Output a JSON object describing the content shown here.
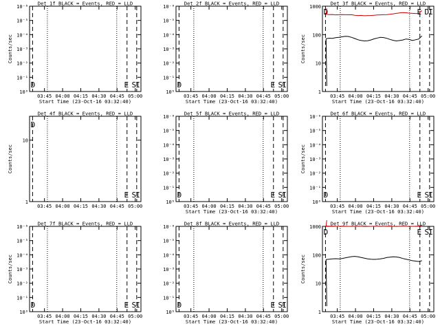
{
  "chart_data": [
    {
      "type": "line",
      "title": "Det 1f BLACK = Events, RED = LLD",
      "xlabel": "Start Time (23-Oct-16 03:32:40)",
      "ylabel": "Counts/sec",
      "y_scale": "log",
      "y_ticks": [
        "10⁰",
        "10⁻¹",
        "10⁻²",
        "10⁻³",
        "10⁻⁴",
        "10⁻⁵",
        "10⁻⁶"
      ],
      "x_ticks": [
        "03:45",
        "04:00",
        "04:15",
        "04:30",
        "04:45",
        "05:00"
      ],
      "markers": [
        "D",
        "E",
        "S",
        "I"
      ],
      "series": []
    },
    {
      "type": "line",
      "title": "Det 2f BLACK = Events, RED = LLD",
      "xlabel": "Start Time (23-Oct-16 03:32:40)",
      "ylabel": "",
      "y_scale": "log",
      "y_ticks": [
        "10⁰",
        "10⁻¹",
        "10⁻²",
        "10⁻³",
        "10⁻⁴",
        "10⁻⁵",
        "10⁻⁶"
      ],
      "x_ticks": [
        "03:45",
        "04:00",
        "04:15",
        "04:30",
        "04:45",
        "05:00"
      ],
      "markers": [
        "D",
        "E",
        "S",
        "I"
      ],
      "series": []
    },
    {
      "type": "line",
      "title": "Det 3f BLACK = Events, RED = LLD",
      "xlabel": "Start Time (23-Oct-16 03:32:40)",
      "ylabel": "Counts/sec",
      "y_scale": "log",
      "y_ticks": [
        "1",
        "10",
        "100",
        "1000"
      ],
      "x_ticks": [
        "03:45",
        "04:00",
        "04:15",
        "04:30",
        "04:45",
        "05:00"
      ],
      "markers": [
        "D",
        "E",
        "D",
        "I"
      ],
      "series": [
        {
          "color": "#000000",
          "x_min": [
            0,
            3,
            6,
            9,
            12,
            15,
            18,
            21,
            24,
            27,
            30,
            33,
            36,
            39,
            42,
            45,
            48,
            51,
            54,
            57,
            60,
            63,
            66,
            69,
            72,
            75,
            78,
            81,
            84,
            87,
            90
          ],
          "y": [
            72,
            75,
            74,
            78,
            80,
            84,
            87,
            86,
            80,
            73,
            66,
            62,
            60,
            61,
            65,
            71,
            76,
            80,
            79,
            74,
            68,
            63,
            60,
            62,
            65,
            70,
            68,
            62,
            66,
            70,
            90
          ]
        },
        {
          "color": "#cc0000",
          "x_min": [
            0,
            3,
            6,
            9,
            12,
            15,
            18,
            21,
            24,
            27,
            30,
            33,
            36,
            39,
            42,
            45,
            48,
            51,
            54,
            57,
            60,
            63,
            66,
            69,
            72,
            75,
            78,
            81,
            84,
            87,
            90
          ],
          "y": [
            520,
            505,
            510,
            495,
            500,
            505,
            500,
            498,
            500,
            480,
            470,
            475,
            460,
            470,
            472,
            480,
            490,
            495,
            500,
            505,
            520,
            540,
            560,
            580,
            600,
            590,
            570,
            560,
            555,
            555,
            700
          ]
        }
      ]
    },
    {
      "type": "line",
      "title": "Det 4f BLACK = Events, RED = LLD",
      "xlabel": "",
      "ylabel": "Counts/sec",
      "y_scale": "log",
      "y_ticks": [
        "1",
        "10"
      ],
      "x_ticks": [
        "03:45",
        "04:00",
        "04:15",
        "04:30",
        "04:45",
        "05:00"
      ],
      "markers": [
        "D",
        "E",
        "S",
        "I"
      ],
      "series": []
    },
    {
      "type": "line",
      "title": "Det 5f BLACK = Events, RED = LLD",
      "xlabel": "Start Time (23-Oct-16 03:32:40)",
      "ylabel": "",
      "y_scale": "log",
      "y_ticks": [
        "10⁰",
        "10⁻¹",
        "10⁻²",
        "10⁻³",
        "10⁻⁴",
        "10⁻⁵",
        "10⁻⁶"
      ],
      "x_ticks": [
        "03:45",
        "04:00",
        "04:15",
        "04:30",
        "04:45",
        "05:00"
      ],
      "markers": [
        "D",
        "E",
        "S",
        "I"
      ],
      "series": []
    },
    {
      "type": "line",
      "title": "Det 6f BLACK = Events, RED = LLD",
      "xlabel": "Start Time (23-Oct-16 03:32:40)",
      "ylabel": "Counts/sec",
      "y_scale": "log",
      "y_ticks": [
        "10⁰",
        "10⁻¹",
        "10⁻²",
        "10⁻³",
        "10⁻⁴",
        "10⁻⁵",
        "10⁻⁶"
      ],
      "x_ticks": [
        "03:45",
        "04:00",
        "04:15",
        "04:30",
        "04:45",
        "05:00"
      ],
      "markers": [
        "D",
        "E",
        "S",
        "I"
      ],
      "series": []
    },
    {
      "type": "line",
      "title": "Det 7f BLACK = Events, RED = LLD",
      "xlabel": "Start Time (23-Oct-16 03:32:40)",
      "ylabel": "Counts/sec",
      "y_scale": "log",
      "y_ticks": [
        "10⁰",
        "10⁻¹",
        "10⁻²",
        "10⁻³",
        "10⁻⁴",
        "10⁻⁵",
        "10⁻⁶"
      ],
      "x_ticks": [
        "03:45",
        "04:00",
        "04:15",
        "04:30",
        "04:45",
        "05:00"
      ],
      "markers": [
        "D",
        "E",
        "S",
        "I"
      ],
      "series": []
    },
    {
      "type": "line",
      "title": "Det 8f BLACK = Events, RED = LLD",
      "xlabel": "Start Time (23-Oct-16 03:32:40)",
      "ylabel": "",
      "y_scale": "log",
      "y_ticks": [
        "10⁰",
        "10⁻¹",
        "10⁻²",
        "10⁻³",
        "10⁻⁴",
        "10⁻⁵",
        "10⁻⁶"
      ],
      "x_ticks": [
        "03:45",
        "04:00",
        "04:15",
        "04:30",
        "04:45",
        "05:00"
      ],
      "markers": [
        "D",
        "E",
        "S",
        "I"
      ],
      "series": []
    },
    {
      "type": "line",
      "title": "Det 9f BLACK = Events, RED = LLD",
      "xlabel": "Start Time (23-Oct-16 03:32:40)",
      "ylabel": "Counts/sec",
      "y_scale": "log",
      "y_ticks": [
        "1",
        "10",
        "100",
        "1000"
      ],
      "x_ticks": [
        "03:45",
        "04:00",
        "04:15",
        "04:30",
        "04:45",
        "05:00"
      ],
      "markers": [
        "D",
        "E",
        "S",
        "I"
      ],
      "series": [
        {
          "color": "#000000",
          "x_min": [
            0,
            3,
            6,
            9,
            12,
            15,
            18,
            21,
            24,
            27,
            30,
            33,
            36,
            39,
            42,
            45,
            48,
            51,
            54,
            57,
            60,
            63,
            66,
            69,
            72,
            75,
            78,
            81,
            84,
            87,
            90
          ],
          "y": [
            68,
            70,
            72,
            73,
            72,
            74,
            78,
            82,
            86,
            88,
            85,
            80,
            76,
            72,
            70,
            69,
            70,
            72,
            75,
            80,
            83,
            85,
            84,
            80,
            74,
            70,
            66,
            62,
            60,
            58,
            62
          ]
        },
        {
          "color": "#cc0000",
          "x_min": [
            0,
            3,
            6,
            9,
            12,
            15,
            18,
            21,
            24,
            27,
            30,
            33,
            36,
            39,
            42,
            45,
            48,
            51,
            54,
            57,
            60,
            63,
            66,
            69,
            72,
            75,
            78,
            81,
            84,
            87,
            90
          ],
          "y": [
            1020,
            1010,
            1015,
            1005,
            1000,
            1010,
            1005,
            1000,
            995,
            1000,
            1005,
            1000,
            990,
            995,
            1000,
            1005,
            1000,
            995,
            1000,
            1005,
            1010,
            1000,
            995,
            1000,
            1005,
            1000,
            995,
            1000,
            1005,
            1010,
            1100
          ]
        }
      ]
    }
  ]
}
